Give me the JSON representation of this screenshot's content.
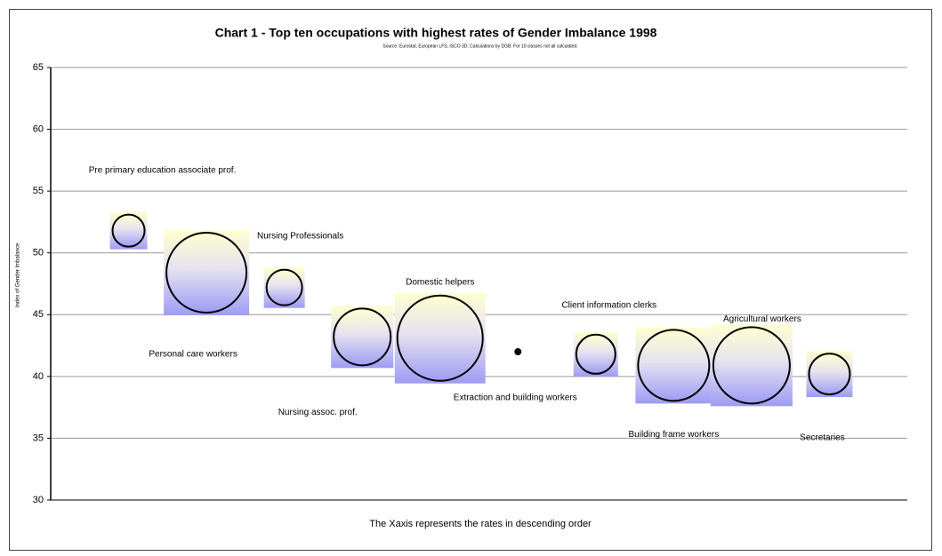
{
  "chart_data": {
    "type": "bubble",
    "title": "Chart 1 - Top ten occupations with highest rates of Gender Imbalance 1998",
    "subtitle": "Source: Eurostat, European LFS, ISCO 3D; Calculations by DGB. For 10 classes not all calculated.",
    "y_label": "Index of Gender Imbalance",
    "x_label": "The Xaxis represents the rates in descending order",
    "x": [
      1,
      2,
      3,
      4,
      5,
      6,
      7,
      8,
      9,
      10
    ],
    "xlim": [
      0,
      11
    ],
    "values": [
      51.8,
      48.4,
      47.2,
      43.2,
      43.1,
      42.0,
      41.8,
      40.9,
      40.9,
      40.2
    ],
    "sizes": [
      18,
      45,
      20,
      32,
      48,
      3,
      22,
      40,
      43,
      23
    ],
    "labels": [
      "Pre primary education associate prof.",
      "Personal care workers",
      "Nursing Professionals",
      "Nursing assoc. prof.",
      "Domestic helpers",
      "Extraction and building workers",
      "Client information clerks",
      "Building frame workers",
      "Agricultural workers",
      "Secretaries"
    ],
    "ylim": [
      30,
      65
    ],
    "yticks": [
      30,
      35,
      40,
      45,
      50,
      55,
      60,
      65
    ],
    "grid": true
  }
}
